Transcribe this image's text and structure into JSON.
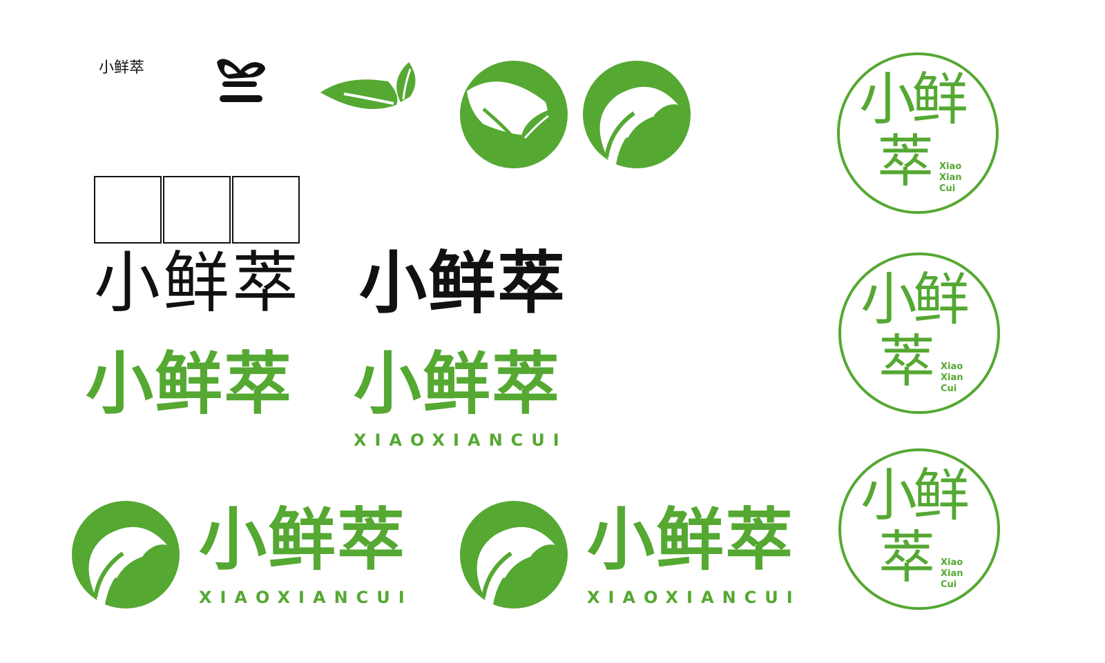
{
  "brand": {
    "name_cn": "小鲜萃",
    "name_pinyin_caps": "XIAOXIANCUI",
    "seal_line1": "Xiao",
    "seal_line2": "Xian",
    "seal_line3": "Cui",
    "seal_char_top": "小鲜",
    "seal_char_bottom": "萃"
  },
  "colors": {
    "brand_green": "#55a832",
    "ink": "#111111",
    "background": "#ffffff"
  },
  "icons": [
    "sketch-leaf-icon",
    "twin-leaf-icon",
    "circle-twin-leaf-icon",
    "circle-sprout-icon"
  ]
}
